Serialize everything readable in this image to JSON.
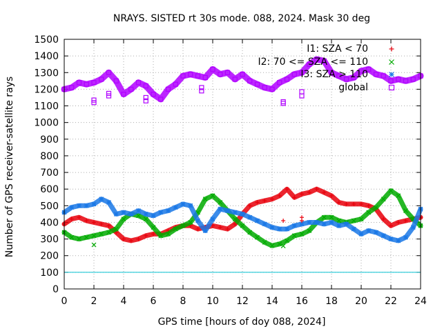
{
  "chart_data": {
    "type": "scatter",
    "title": "NRAYS. SISTED rt 30s mode. 088, 2024. Mask 30 deg",
    "xlabel": "GPS time [hours of doy 088, 2024]",
    "ylabel": "Number of GPS receiver-satellite rays",
    "xlim": [
      0,
      24
    ],
    "ylim": [
      0,
      1500
    ],
    "xticks": [
      0,
      2,
      4,
      6,
      8,
      10,
      12,
      14,
      16,
      18,
      20,
      22,
      24
    ],
    "yticks": [
      0,
      100,
      200,
      300,
      400,
      500,
      600,
      700,
      800,
      900,
      1000,
      1100,
      1200,
      1300,
      1400,
      1500
    ],
    "grid": true,
    "legend_position": "top-right",
    "threshold_line": {
      "y": 100,
      "color": "#00c0d0"
    },
    "series": [
      {
        "name": "I1: SZA < 70",
        "marker": "+",
        "color": "#e8000b",
        "x": [
          0,
          0.5,
          1,
          1.5,
          2,
          2.5,
          3,
          3.5,
          4,
          4.5,
          5,
          5.5,
          6,
          6.5,
          7,
          7.5,
          8,
          8.5,
          9,
          9.5,
          10,
          10.5,
          11,
          11.5,
          12,
          12.5,
          13,
          13.5,
          14,
          14.5,
          15,
          15.5,
          16,
          16.5,
          17,
          17.5,
          18,
          18.5,
          19,
          19.5,
          20,
          20.5,
          21,
          21.5,
          22,
          22.5,
          23,
          23.5,
          24
        ],
        "y": [
          390,
          420,
          430,
          410,
          400,
          390,
          380,
          340,
          300,
          290,
          300,
          320,
          330,
          330,
          350,
          370,
          380,
          380,
          360,
          370,
          380,
          370,
          360,
          390,
          450,
          500,
          520,
          530,
          540,
          560,
          600,
          550,
          570,
          580,
          600,
          580,
          560,
          520,
          510,
          510,
          510,
          500,
          480,
          420,
          380,
          400,
          410,
          420,
          430
        ]
      },
      {
        "name": "I2: 70 <= SZA <= 110",
        "marker": "x",
        "color": "#00aa00",
        "x": [
          0,
          0.5,
          1,
          1.5,
          2,
          2.5,
          3,
          3.5,
          4,
          4.5,
          5,
          5.5,
          6,
          6.5,
          7,
          7.5,
          8,
          8.5,
          9,
          9.5,
          10,
          10.5,
          11,
          11.5,
          12,
          12.5,
          13,
          13.5,
          14,
          14.5,
          15,
          15.5,
          16,
          16.5,
          17,
          17.5,
          18,
          18.5,
          19,
          19.5,
          20,
          20.5,
          21,
          21.5,
          22,
          22.5,
          23,
          23.5,
          24
        ],
        "y": [
          340,
          310,
          300,
          310,
          320,
          330,
          340,
          360,
          420,
          450,
          440,
          420,
          370,
          320,
          330,
          360,
          380,
          400,
          460,
          540,
          560,
          520,
          470,
          420,
          380,
          340,
          310,
          280,
          260,
          270,
          290,
          320,
          330,
          350,
          400,
          430,
          430,
          410,
          400,
          410,
          420,
          460,
          490,
          540,
          590,
          560,
          470,
          420,
          380
        ]
      },
      {
        "name": "I3: SZA > 110",
        "marker": "*",
        "color": "#1a78e6",
        "x": [
          0,
          0.5,
          1,
          1.5,
          2,
          2.5,
          3,
          3.5,
          4,
          4.5,
          5,
          5.5,
          6,
          6.5,
          7,
          7.5,
          8,
          8.5,
          9,
          9.5,
          10,
          10.5,
          11,
          11.5,
          12,
          12.5,
          13,
          13.5,
          14,
          14.5,
          15,
          15.5,
          16,
          16.5,
          17,
          17.5,
          18,
          18.5,
          19,
          19.5,
          20,
          20.5,
          21,
          21.5,
          22,
          22.5,
          23,
          23.5,
          24
        ],
        "y": [
          460,
          490,
          500,
          500,
          510,
          540,
          520,
          450,
          460,
          450,
          470,
          450,
          440,
          460,
          470,
          490,
          510,
          500,
          410,
          350,
          420,
          480,
          470,
          460,
          450,
          430,
          410,
          390,
          370,
          360,
          360,
          380,
          390,
          400,
          400,
          390,
          400,
          380,
          390,
          360,
          330,
          350,
          340,
          320,
          300,
          290,
          310,
          370,
          480
        ]
      },
      {
        "name": "global",
        "marker": "square",
        "color": "#b000ff",
        "x": [
          0,
          0.5,
          1,
          1.5,
          2,
          2.5,
          3,
          3.5,
          4,
          4.5,
          5,
          5.5,
          6,
          6.5,
          7,
          7.5,
          8,
          8.5,
          9,
          9.5,
          10,
          10.5,
          11,
          11.5,
          12,
          12.5,
          13,
          13.5,
          14,
          14.5,
          15,
          15.5,
          16,
          16.5,
          17,
          17.5,
          18,
          18.5,
          19,
          19.5,
          20,
          20.5,
          21,
          21.5,
          22,
          22.5,
          23,
          23.5,
          24
        ],
        "y": [
          1200,
          1210,
          1240,
          1230,
          1240,
          1260,
          1300,
          1250,
          1170,
          1200,
          1240,
          1220,
          1170,
          1140,
          1200,
          1230,
          1280,
          1290,
          1280,
          1270,
          1320,
          1290,
          1300,
          1260,
          1290,
          1250,
          1230,
          1210,
          1200,
          1240,
          1260,
          1290,
          1300,
          1350,
          1380,
          1370,
          1300,
          1280,
          1260,
          1270,
          1310,
          1320,
          1290,
          1280,
          1250,
          1260,
          1250,
          1260,
          1280
        ]
      }
    ],
    "outliers": [
      {
        "series": 0,
        "x": 14.75,
        "y": 410
      },
      {
        "series": 0,
        "x": 16,
        "y": 430
      },
      {
        "series": 0,
        "x": 16,
        "y": 410
      },
      {
        "series": 1,
        "x": 2,
        "y": 265
      },
      {
        "series": 1,
        "x": 14.75,
        "y": 258
      },
      {
        "series": 3,
        "x": 2,
        "y": 1120
      },
      {
        "series": 3,
        "x": 2,
        "y": 1135
      },
      {
        "series": 3,
        "x": 3,
        "y": 1160
      },
      {
        "series": 3,
        "x": 3,
        "y": 1175
      },
      {
        "series": 3,
        "x": 5.5,
        "y": 1130
      },
      {
        "series": 3,
        "x": 5.5,
        "y": 1150
      },
      {
        "series": 3,
        "x": 9.25,
        "y": 1190
      },
      {
        "series": 3,
        "x": 9.25,
        "y": 1210
      },
      {
        "series": 3,
        "x": 14.75,
        "y": 1125
      },
      {
        "series": 3,
        "x": 14.75,
        "y": 1115
      },
      {
        "series": 3,
        "x": 16,
        "y": 1160
      },
      {
        "series": 3,
        "x": 16,
        "y": 1185
      }
    ]
  }
}
